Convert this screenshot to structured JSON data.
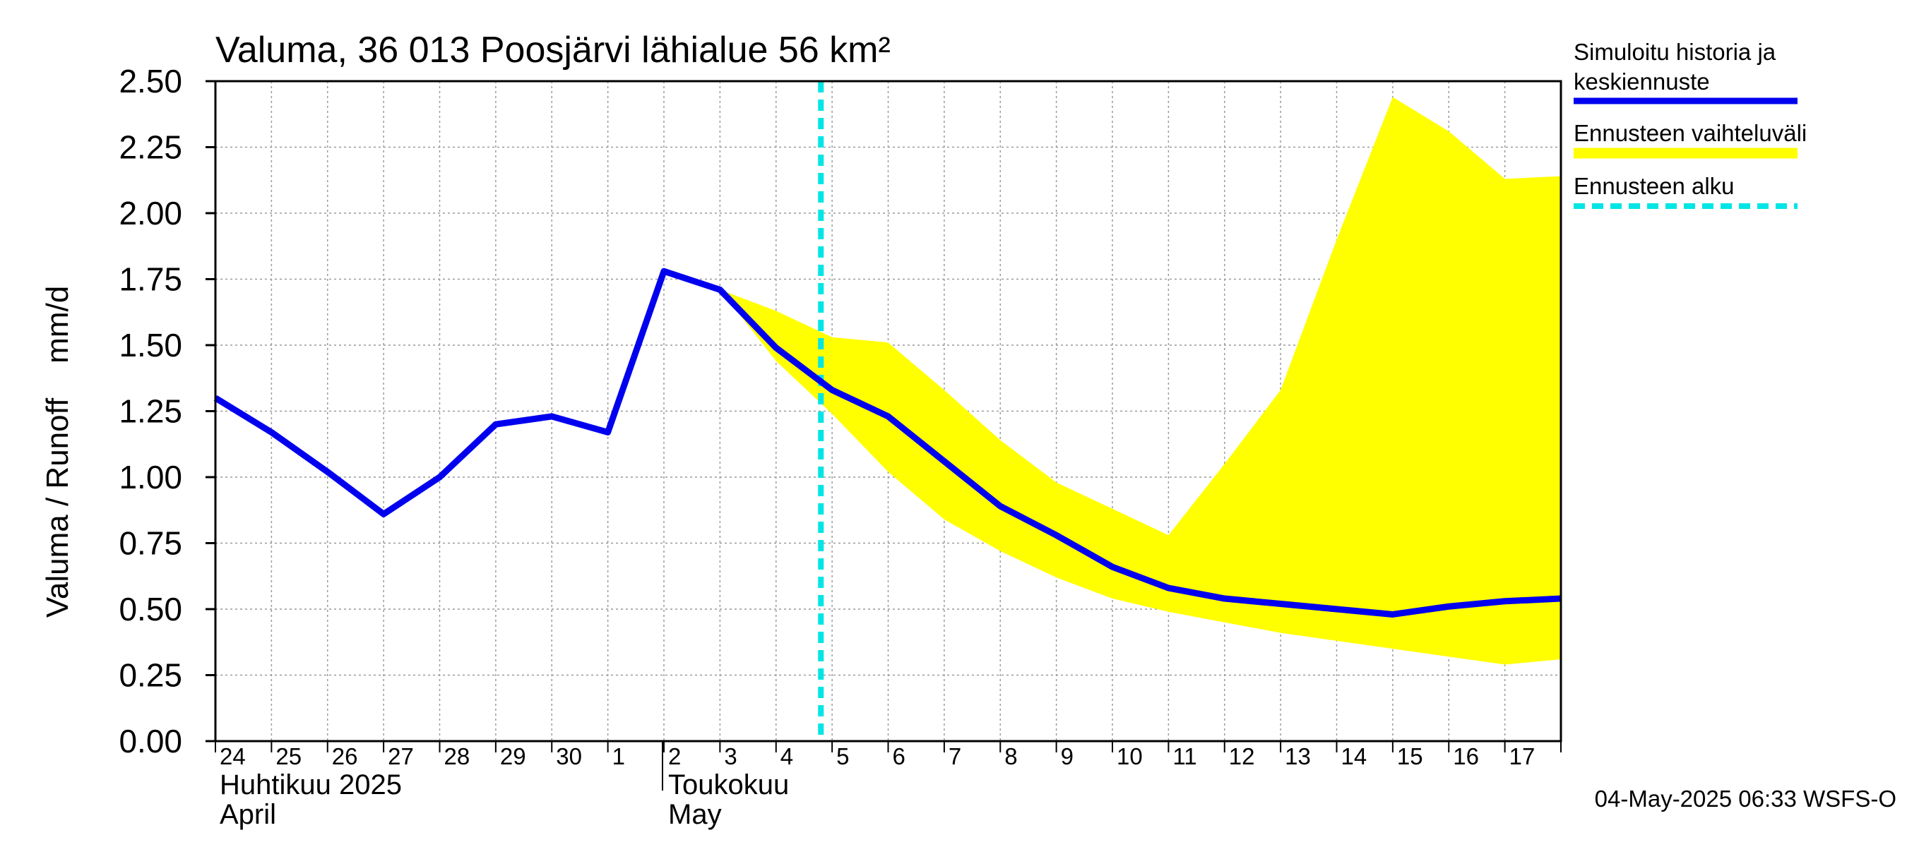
{
  "chart_data": {
    "type": "line",
    "title": "Valuma, 36 013 Poosjärvi lähialue 56 km²",
    "ylabel": "Valuma / Runoff    mm/d",
    "ylim": [
      0,
      2.5
    ],
    "yticks": [
      "0.00",
      "0.25",
      "0.50",
      "0.75",
      "1.00",
      "1.25",
      "1.50",
      "1.75",
      "2.00",
      "2.25",
      "2.50"
    ],
    "x_start_day_offset": 0,
    "x_end_day_offset": 24,
    "day_labels": [
      "24",
      "25",
      "26",
      "27",
      "28",
      "29",
      "30",
      "1",
      "2",
      "3",
      "4",
      "5",
      "6",
      "7",
      "8",
      "9",
      "10",
      "11",
      "12",
      "13",
      "14",
      "15",
      "16",
      "17"
    ],
    "month_labels": [
      {
        "line1": "Huhtikuu  2025",
        "line2": "April",
        "day_offset": 0
      },
      {
        "line1": "Toukokuu",
        "line2": "May",
        "day_offset": 8
      }
    ],
    "forecast_start_day_offset": 10.8,
    "series": [
      {
        "name": "Simuloitu historia ja keskiennuste",
        "color": "#0000ee",
        "x": [
          0,
          1,
          2,
          3,
          4,
          5,
          6,
          7,
          8,
          9,
          10,
          11,
          12,
          13,
          14,
          15,
          16,
          17,
          18,
          19,
          20,
          21,
          22,
          23,
          24
        ],
        "values": [
          1.3,
          1.17,
          1.02,
          0.86,
          1.0,
          1.2,
          1.23,
          1.17,
          1.78,
          1.71,
          1.49,
          1.33,
          1.23,
          1.06,
          0.89,
          0.78,
          0.66,
          0.58,
          0.54,
          0.52,
          0.5,
          0.48,
          0.51,
          0.53,
          0.54
        ]
      }
    ],
    "band": {
      "name": "Ennusteen vaihteluväli",
      "color": "#ffff00",
      "x": [
        9,
        10,
        11,
        12,
        13,
        14,
        15,
        16,
        17,
        18,
        19,
        20,
        21,
        22,
        23,
        24
      ],
      "upper": [
        1.71,
        1.63,
        1.53,
        1.51,
        1.33,
        1.14,
        0.98,
        0.88,
        0.78,
        1.05,
        1.33,
        1.9,
        2.44,
        2.31,
        2.13,
        2.14
      ],
      "lower": [
        1.71,
        1.44,
        1.24,
        1.02,
        0.84,
        0.72,
        0.62,
        0.54,
        0.49,
        0.45,
        0.41,
        0.38,
        0.35,
        0.32,
        0.29,
        0.31
      ]
    },
    "forecast_line": {
      "name": "Ennusteen alku",
      "color": "#00e5e5"
    }
  },
  "legend": {
    "history_line1": "Simuloitu historia ja",
    "history_line2": "keskiennuste",
    "band": "Ennusteen vaihteluväli",
    "forecast_start": "Ennusteen alku"
  },
  "footer": "04-May-2025 06:33 WSFS-O"
}
